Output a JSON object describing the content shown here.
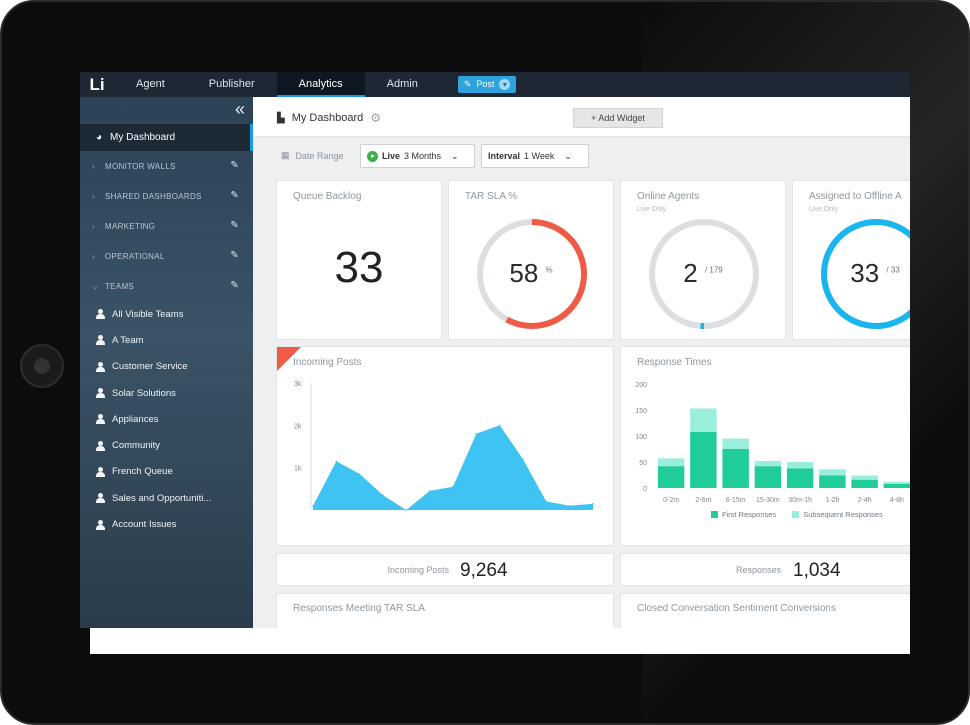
{
  "nav": {
    "logo": "Li",
    "items": [
      "Agent",
      "Publisher",
      "Analytics",
      "Admin"
    ],
    "active_index": 2,
    "post_label": "Post"
  },
  "sidebar": {
    "collapse_glyph": "«",
    "active_item": "My Dashboard",
    "sections": [
      "MONITOR WALLS",
      "SHARED DASHBOARDS",
      "MARKETING",
      "OPERATIONAL",
      "TEAMS"
    ],
    "teams": [
      "All Visible Teams",
      "A Team",
      "Customer Service",
      "Solar Solutions",
      "Appliances",
      "Community",
      "French Queue",
      "Sales and Opportuniti...",
      "Account Issues"
    ]
  },
  "header": {
    "title": "My Dashboard",
    "add_widget": "+ Add Widget"
  },
  "filters": {
    "date_range_label": "Date Range",
    "live_label": "Live",
    "live_value": "3 Months",
    "interval_label": "Interval",
    "interval_value": "1 Week"
  },
  "widgets": {
    "queue_backlog": {
      "title": "Queue Backlog",
      "value": "33"
    },
    "tar_sla": {
      "title": "TAR SLA %",
      "value": "58",
      "unit": "%",
      "fraction": 0.58
    },
    "online_agents": {
      "title": "Online Agents",
      "subtitle": "Live Only",
      "value": "2",
      "total": "/ 179",
      "fraction": 0.011
    },
    "assigned_offline": {
      "title": "Assigned to Offline A",
      "subtitle": "Live Only",
      "value": "33",
      "total": "/ 33",
      "fraction": 1.0
    },
    "incoming_posts": {
      "title": "Incoming Posts"
    },
    "response_times": {
      "title": "Response Times"
    }
  },
  "chart_data": [
    {
      "type": "area",
      "title": "Incoming Posts",
      "ytick_labels": [
        "1k",
        "2k",
        "3k"
      ],
      "ylim": [
        0,
        3000
      ],
      "x": [
        1,
        2,
        3,
        4,
        5,
        6,
        7,
        8,
        9,
        10,
        11,
        12,
        13
      ],
      "series": [
        {
          "values": [
            100,
            1150,
            850,
            350,
            0,
            450,
            550,
            1800,
            2000,
            1200,
            200,
            100,
            150
          ]
        }
      ],
      "color": "#3fc3f2"
    },
    {
      "type": "bar",
      "title": "Response Times",
      "categories": [
        "0-2m",
        "2-6m",
        "6-15m",
        "15-30m",
        "30m-1h",
        "1-2h",
        "2-4h",
        "4-8h"
      ],
      "yticks": [
        0,
        50,
        100,
        150,
        200
      ],
      "ylim": [
        0,
        200
      ],
      "series": [
        {
          "name": "First Responses",
          "values": [
            42,
            108,
            75,
            42,
            38,
            24,
            16,
            8
          ],
          "color": "#1fcc9a"
        },
        {
          "name": "Subsequent Responses",
          "values": [
            15,
            45,
            20,
            10,
            12,
            12,
            8,
            4
          ],
          "color": "#9aeedd"
        }
      ]
    }
  ],
  "stats": {
    "incoming_posts_label": "Incoming Posts",
    "incoming_posts_value": "9,264",
    "responses_label": "Responses",
    "responses_value": "1,034"
  },
  "bottom": {
    "left_title": "Responses Meeting TAR SLA",
    "right_title": "Closed Conversation Sentiment Conversions"
  },
  "colors": {
    "nav_bg": "#1d2834",
    "accent": "#1a9ae0",
    "tar_red": "#ef5b45",
    "gauge_blue": "#1ab4ee",
    "gauge_track": "#dcdfe2"
  }
}
